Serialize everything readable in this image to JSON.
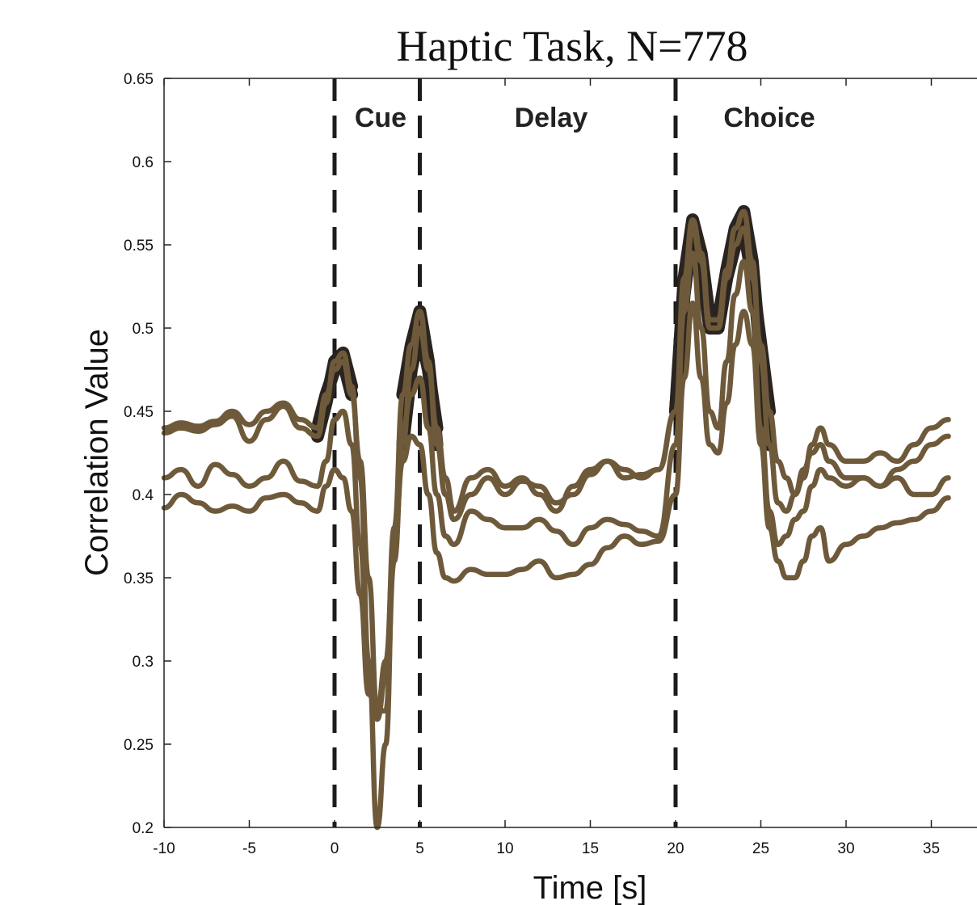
{
  "chart_data": {
    "type": "line",
    "title": "Haptic Task, N=778",
    "xlabel": "Time [s]",
    "ylabel": "Correlation Value",
    "xlim": [
      -10,
      37
    ],
    "ylim": [
      0.2,
      0.65
    ],
    "xticks": [
      -10,
      -5,
      0,
      5,
      10,
      15,
      20,
      25,
      30,
      35
    ],
    "yticks": [
      0.2,
      0.25,
      0.3,
      0.35,
      0.4,
      0.45,
      0.5,
      0.55,
      0.6,
      0.65
    ],
    "xtick_labels": [
      "-10",
      "-5",
      "0",
      "5",
      "10",
      "15",
      "20",
      "25",
      "30",
      "35"
    ],
    "ytick_labels": [
      "0.2",
      "0.25",
      "0.3",
      "0.35",
      "0.4",
      "0.45",
      "0.5",
      "0.55",
      "0.6",
      "0.65"
    ],
    "grid": false,
    "line_color": "#6e5a3a",
    "highlight_color": "#2a2420",
    "event_lines": [
      0,
      5,
      20
    ],
    "phases": [
      {
        "label": "Cue",
        "x": 2.7
      },
      {
        "label": "Delay",
        "x": 12.7
      },
      {
        "label": "Choice",
        "x": 25.5
      }
    ],
    "series": [
      {
        "x": [
          -10,
          -9,
          -8,
          -7,
          -6,
          -5,
          -4,
          -3,
          -2,
          -1,
          -0.5,
          0,
          0.5,
          1,
          1.5,
          2,
          2.5,
          3,
          3.5,
          4,
          4.5,
          5,
          5.5,
          6,
          6.5,
          7,
          8,
          9,
          10,
          11,
          12,
          13,
          14,
          15,
          16,
          17,
          18,
          19,
          20,
          20.5,
          21,
          21.5,
          22,
          22.5,
          23,
          23.5,
          24,
          24.5,
          25,
          25.5,
          26,
          26.5,
          27,
          27.5,
          28,
          28.5,
          29,
          30,
          31,
          32,
          33,
          34,
          35,
          36
        ],
        "y": [
          0.44,
          0.443,
          0.441,
          0.444,
          0.45,
          0.442,
          0.45,
          0.455,
          0.445,
          0.44,
          0.46,
          0.475,
          0.48,
          0.46,
          0.42,
          0.35,
          0.27,
          0.27,
          0.36,
          0.43,
          0.475,
          0.5,
          0.475,
          0.44,
          0.41,
          0.39,
          0.41,
          0.415,
          0.405,
          0.41,
          0.4,
          0.39,
          0.405,
          0.415,
          0.42,
          0.415,
          0.41,
          0.415,
          0.45,
          0.52,
          0.56,
          0.54,
          0.5,
          0.5,
          0.53,
          0.55,
          0.56,
          0.53,
          0.49,
          0.45,
          0.42,
          0.41,
          0.4,
          0.41,
          0.43,
          0.44,
          0.43,
          0.42,
          0.42,
          0.425,
          0.42,
          0.43,
          0.44,
          0.445
        ]
      },
      {
        "x": [
          -10,
          -9,
          -8,
          -7,
          -6,
          -5,
          -4,
          -3,
          -2,
          -1,
          -0.5,
          0,
          0.5,
          1,
          1.5,
          2,
          2.5,
          3,
          3.5,
          4,
          4.5,
          5,
          5.5,
          6,
          6.5,
          7,
          8,
          9,
          10,
          11,
          12,
          13,
          14,
          15,
          16,
          17,
          18,
          19,
          20,
          20.5,
          21,
          21.5,
          22,
          22.5,
          23,
          23.5,
          24,
          24.5,
          25,
          25.5,
          26,
          26.5,
          27,
          27.5,
          28,
          28.5,
          29,
          30,
          31,
          32,
          33,
          34,
          35,
          36
        ],
        "y": [
          0.437,
          0.44,
          0.438,
          0.442,
          0.447,
          0.432,
          0.445,
          0.453,
          0.44,
          0.435,
          0.455,
          0.48,
          0.485,
          0.465,
          0.41,
          0.3,
          0.2,
          0.25,
          0.38,
          0.46,
          0.49,
          0.51,
          0.48,
          0.43,
          0.4,
          0.385,
          0.4,
          0.41,
          0.4,
          0.408,
          0.405,
          0.395,
          0.4,
          0.412,
          0.42,
          0.41,
          0.412,
          0.415,
          0.45,
          0.53,
          0.565,
          0.545,
          0.505,
          0.505,
          0.535,
          0.56,
          0.57,
          0.54,
          0.48,
          0.43,
          0.395,
          0.39,
          0.4,
          0.415,
          0.425,
          0.43,
          0.42,
          0.41,
          0.41,
          0.405,
          0.415,
          0.42,
          0.43,
          0.435
        ]
      },
      {
        "x": [
          -10,
          -9,
          -8,
          -7,
          -6,
          -5,
          -4,
          -3,
          -2,
          -1,
          -0.5,
          0,
          0.5,
          1,
          1.5,
          2,
          2.5,
          3,
          3.5,
          4,
          4.5,
          5,
          5.5,
          6,
          6.5,
          7,
          8,
          9,
          10,
          11,
          12,
          13,
          14,
          15,
          16,
          17,
          18,
          19,
          20,
          20.5,
          21,
          21.5,
          22,
          22.5,
          23,
          23.5,
          24,
          24.5,
          25,
          25.5,
          26,
          26.5,
          27,
          27.5,
          28,
          28.5,
          29,
          30,
          31,
          32,
          33,
          34,
          35,
          36
        ],
        "y": [
          0.41,
          0.415,
          0.405,
          0.418,
          0.412,
          0.405,
          0.41,
          0.42,
          0.408,
          0.405,
          0.42,
          0.445,
          0.45,
          0.43,
          0.37,
          0.29,
          0.265,
          0.29,
          0.38,
          0.44,
          0.46,
          0.47,
          0.44,
          0.4,
          0.375,
          0.37,
          0.39,
          0.385,
          0.38,
          0.38,
          0.385,
          0.378,
          0.37,
          0.38,
          0.385,
          0.382,
          0.378,
          0.375,
          0.43,
          0.51,
          0.545,
          0.5,
          0.45,
          0.44,
          0.48,
          0.52,
          0.54,
          0.51,
          0.44,
          0.39,
          0.37,
          0.375,
          0.385,
          0.39,
          0.405,
          0.415,
          0.41,
          0.405,
          0.41,
          0.405,
          0.41,
          0.4,
          0.4,
          0.41
        ]
      },
      {
        "x": [
          -10,
          -9,
          -8,
          -7,
          -6,
          -5,
          -4,
          -3,
          -2,
          -1,
          -0.5,
          0,
          0.5,
          1,
          1.5,
          2,
          2.5,
          3,
          3.5,
          4,
          4.5,
          5,
          5.5,
          6,
          6.5,
          7,
          8,
          9,
          10,
          11,
          12,
          13,
          14,
          15,
          16,
          17,
          18,
          19,
          20,
          20.5,
          21,
          21.5,
          22,
          22.5,
          23,
          23.5,
          24,
          24.5,
          25,
          25.5,
          26,
          26.5,
          27,
          27.5,
          28,
          28.5,
          29,
          30,
          31,
          32,
          33,
          34,
          35,
          36
        ],
        "y": [
          0.392,
          0.4,
          0.395,
          0.39,
          0.393,
          0.39,
          0.398,
          0.4,
          0.395,
          0.39,
          0.405,
          0.415,
          0.41,
          0.39,
          0.34,
          0.28,
          0.27,
          0.3,
          0.37,
          0.42,
          0.435,
          0.43,
          0.4,
          0.365,
          0.35,
          0.348,
          0.355,
          0.352,
          0.352,
          0.355,
          0.36,
          0.35,
          0.352,
          0.358,
          0.368,
          0.375,
          0.37,
          0.372,
          0.4,
          0.47,
          0.515,
          0.47,
          0.43,
          0.425,
          0.455,
          0.49,
          0.51,
          0.49,
          0.43,
          0.38,
          0.36,
          0.35,
          0.35,
          0.36,
          0.375,
          0.38,
          0.36,
          0.37,
          0.375,
          0.38,
          0.383,
          0.385,
          0.39,
          0.398
        ]
      }
    ],
    "highlighted_segments": [
      {
        "x_from": -1,
        "x_to": 1
      },
      {
        "x_from": 3.8,
        "x_to": 6.0
      },
      {
        "x_from": 19.6,
        "x_to": 25.8
      }
    ]
  }
}
